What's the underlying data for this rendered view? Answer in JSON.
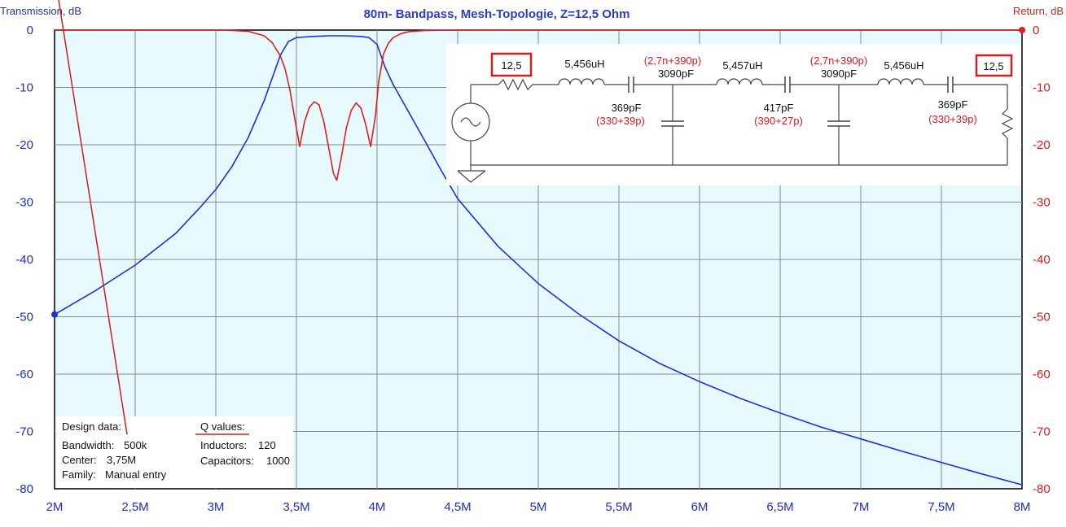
{
  "chart_data": {
    "type": "line",
    "title": "80m- Bandpass, Mesh-Topologie,  Z=12,5 Ohm",
    "ylabel_left": "Transmission, dB",
    "ylabel_right": "Return, dB",
    "x_range": [
      2000000,
      8000000
    ],
    "y_range": [
      -80,
      0
    ],
    "x_ticks": [
      {
        "value": 2000000,
        "label": "2M"
      },
      {
        "value": 2500000,
        "label": "2,5M"
      },
      {
        "value": 3000000,
        "label": "3M"
      },
      {
        "value": 3500000,
        "label": "3,5M"
      },
      {
        "value": 4000000,
        "label": "4M"
      },
      {
        "value": 4500000,
        "label": "4,5M"
      },
      {
        "value": 5000000,
        "label": "5M"
      },
      {
        "value": 5500000,
        "label": "5,5M"
      },
      {
        "value": 6000000,
        "label": "6M"
      },
      {
        "value": 6500000,
        "label": "6,5M"
      },
      {
        "value": 7000000,
        "label": "7M"
      },
      {
        "value": 7500000,
        "label": "7,5M"
      },
      {
        "value": 8000000,
        "label": "8M"
      }
    ],
    "y_ticks": [
      {
        "value": 0,
        "label": "0"
      },
      {
        "value": -10,
        "label": "-10"
      },
      {
        "value": -20,
        "label": "-20"
      },
      {
        "value": -30,
        "label": "-30"
      },
      {
        "value": -40,
        "label": "-40"
      },
      {
        "value": -50,
        "label": "-50"
      },
      {
        "value": -60,
        "label": "-60"
      },
      {
        "value": -70,
        "label": "-70"
      },
      {
        "value": -80,
        "label": "-80"
      }
    ],
    "grid": true,
    "series": [
      {
        "role": "transmission",
        "color": "#1f2fe0",
        "x": [
          2000000,
          2250000,
          2500000,
          2750000,
          2900000,
          3000000,
          3100000,
          3200000,
          3300000,
          3400000,
          3450000,
          3500000,
          3550000,
          3600000,
          3700000,
          3800000,
          3900000,
          3950000,
          4000000,
          4050000,
          4100000,
          4200000,
          4300000,
          4400000,
          4500000,
          4750000,
          5000000,
          5250000,
          5500000,
          5750000,
          6000000,
          6250000,
          6500000,
          6750000,
          7000000,
          7250000,
          7500000,
          7750000,
          8000000
        ],
        "y": [
          -49.6,
          -45.5,
          -41,
          -35.5,
          -31,
          -27.8,
          -23.8,
          -18.8,
          -12.3,
          -4.4,
          -2,
          -1.3,
          -1.2,
          -1.1,
          -1,
          -1,
          -1.1,
          -1.3,
          -2.5,
          -6.5,
          -9.5,
          -14.5,
          -19.5,
          -24.6,
          -29.4,
          -37.7,
          -44.2,
          -49.5,
          -54.2,
          -58.1,
          -61.3,
          -64.2,
          -66.8,
          -69.2,
          -71.3,
          -73.4,
          -75.4,
          -77.4,
          -79.3
        ]
      },
      {
        "role": "return",
        "color": "#e01f1f",
        "x": [
          2000000,
          3000000,
          3100000,
          3200000,
          3300000,
          3350000,
          3400000,
          3430000,
          3460000,
          3490000,
          3520000,
          3550000,
          3580000,
          3610000,
          3640000,
          3670000,
          3700000,
          3730000,
          3750000,
          3780000,
          3810000,
          3840000,
          3870000,
          3900000,
          3930000,
          3960000,
          3990000,
          4010000,
          4040000,
          4070000,
          4100000,
          4150000,
          4200000,
          4300000,
          4500000,
          8000000
        ],
        "y": [
          0,
          0,
          -0.05,
          -0.2,
          -1,
          -2.2,
          -4.5,
          -6.8,
          -10.5,
          -15.5,
          -20.3,
          -16,
          -13.5,
          -12.5,
          -13,
          -16,
          -20.5,
          -25,
          -26.2,
          -22,
          -17,
          -14,
          -12.7,
          -13.6,
          -16.5,
          -20.3,
          -15,
          -9,
          -4.2,
          -2.3,
          -1.3,
          -0.6,
          -0.25,
          -0.05,
          0,
          0
        ]
      }
    ],
    "markers": [
      {
        "series": "transmission",
        "x": 2000000,
        "y": -49.6
      },
      {
        "series": "return",
        "x": 8000000,
        "y": 0
      }
    ]
  },
  "schematic": {
    "source_impedance": "12,5",
    "load_impedance": "12,5",
    "inductors": [
      "5,456uH",
      "5,457uH",
      "5,456uH"
    ],
    "series_caps": [
      {
        "value": "369pF",
        "combo": "(330+39p)"
      },
      {
        "value": "417pF",
        "combo": "(390+27p)"
      },
      {
        "value": "369pF",
        "combo": "(330+39p)"
      }
    ],
    "shunt_caps": [
      {
        "value": "3090pF",
        "combo": "(2,7n+390p)"
      },
      {
        "value": "3090pF",
        "combo": "(2,7n+390p)"
      }
    ]
  },
  "design_data": {
    "heading": "Design data:",
    "bandwidth_label": "Bandwidth:",
    "bandwidth_value": "500k",
    "center_label": "Center:",
    "center_value": "3,75M",
    "family_label": "Family:",
    "family_value": "Manual entry"
  },
  "q_values": {
    "heading": "Q values:",
    "inductors_label": "Inductors:",
    "inductors_value": "120",
    "capacitors_label": "Capacitors:",
    "capacitors_value": "1000"
  }
}
